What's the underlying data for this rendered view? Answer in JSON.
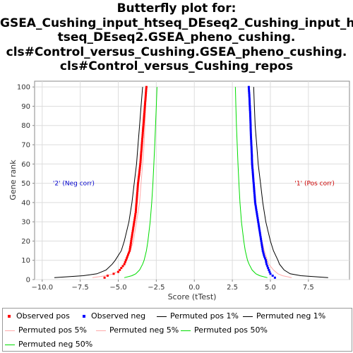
{
  "title_lines": [
    "Butterfly plot for:",
    "GSEA_Cushing_input_htseq_DEseq2_Cushing_input_h",
    "tseq_DEseq2.GSEA_pheno_cushing.",
    "cls#Control_versus_Cushing.GSEA_pheno_cushing.",
    "cls#Control_versus_Cushing_repos"
  ],
  "chart_data": {
    "type": "scatter",
    "xlabel": "Score (tTest)",
    "ylabel": "Gene rank",
    "xlim": [
      -10.5,
      10.2
    ],
    "ylim": [
      0,
      103
    ],
    "xticks": [
      -10.0,
      -7.5,
      -5.0,
      -2.5,
      0.0,
      2.5,
      5.0,
      7.5
    ],
    "xtick_labels": [
      "−10.0",
      "−7.5",
      "−5.0",
      "−2.5",
      "0.0",
      "2.5",
      "5.0",
      "7.5"
    ],
    "yticks": [
      0,
      10,
      20,
      30,
      40,
      50,
      60,
      70,
      80,
      90,
      100
    ],
    "grid": true,
    "legend_position": "bottom",
    "annotations": [
      {
        "text": "'2' (Neg corr)",
        "x": -9.3,
        "y": 50,
        "color": "#0000cc"
      },
      {
        "text": "'1' (Pos corr)",
        "x": 6.6,
        "y": 50,
        "color": "#cc0000"
      }
    ],
    "series": [
      {
        "name": "Observed pos",
        "style": "points",
        "color": "#ff0000",
        "rank": [
          1,
          2,
          3,
          4,
          5,
          6,
          7,
          8,
          10,
          12,
          15,
          20,
          25,
          30,
          35,
          40,
          45,
          50,
          55,
          60,
          65,
          70,
          75,
          80,
          85,
          90,
          95,
          100
        ],
        "score": [
          -5.9,
          -5.7,
          -5.3,
          -5.0,
          -4.9,
          -4.8,
          -4.7,
          -4.6,
          -4.5,
          -4.4,
          -4.25,
          -4.15,
          -4.05,
          -3.95,
          -3.85,
          -3.8,
          -3.75,
          -3.7,
          -3.62,
          -3.55,
          -3.5,
          -3.45,
          -3.4,
          -3.35,
          -3.3,
          -3.25,
          -3.2,
          -3.15
        ]
      },
      {
        "name": "Observed neg",
        "style": "points",
        "color": "#0000ff",
        "rank": [
          1,
          2,
          3,
          4,
          5,
          6,
          7,
          8,
          10,
          12,
          15,
          20,
          25,
          30,
          35,
          40,
          45,
          50,
          55,
          60,
          65,
          70,
          75,
          80,
          85,
          90,
          95,
          100
        ],
        "score": [
          5.3,
          5.15,
          5.0,
          4.95,
          4.9,
          4.85,
          4.8,
          4.75,
          4.7,
          4.6,
          4.5,
          4.4,
          4.3,
          4.2,
          4.1,
          4.0,
          3.95,
          3.9,
          3.85,
          3.8,
          3.78,
          3.75,
          3.72,
          3.7,
          3.68,
          3.65,
          3.62,
          3.58
        ]
      },
      {
        "name": "Permuted pos 1%",
        "style": "line",
        "color": "#000000",
        "rank": [
          1,
          2,
          3,
          5,
          8,
          10,
          15,
          20,
          30,
          40,
          50,
          60,
          70,
          80,
          90,
          100
        ],
        "score": [
          -9.2,
          -7.3,
          -6.4,
          -5.8,
          -5.4,
          -5.2,
          -4.8,
          -4.6,
          -4.3,
          -4.1,
          -3.95,
          -3.8,
          -3.7,
          -3.6,
          -3.5,
          -3.4
        ]
      },
      {
        "name": "Permuted neg 1%",
        "style": "line",
        "color": "#000000",
        "rank": [
          1,
          2,
          3,
          5,
          8,
          10,
          15,
          20,
          30,
          40,
          50,
          60,
          70,
          80,
          90,
          100
        ],
        "score": [
          8.8,
          7.0,
          6.3,
          5.9,
          5.6,
          5.5,
          5.2,
          5.0,
          4.7,
          4.5,
          4.35,
          4.2,
          4.1,
          4.0,
          3.95,
          3.9
        ]
      },
      {
        "name": "Permuted pos 5%",
        "style": "line",
        "color": "#ffaaaa",
        "rank": [
          1,
          2,
          3,
          5,
          8,
          10,
          15,
          20,
          30,
          40,
          50,
          60,
          70,
          80,
          90,
          100
        ],
        "score": [
          -6.7,
          -5.8,
          -5.3,
          -4.9,
          -4.6,
          -4.45,
          -4.2,
          -4.0,
          -3.8,
          -3.6,
          -3.5,
          -3.4,
          -3.3,
          -3.25,
          -3.2,
          -3.15
        ]
      },
      {
        "name": "Permuted neg 5%",
        "style": "line",
        "color": "#ffaaaa",
        "rank": [
          1,
          2,
          3,
          5,
          8,
          10,
          15,
          20,
          30,
          40,
          50,
          60,
          70,
          80,
          90,
          100
        ],
        "score": [
          6.4,
          5.8,
          5.5,
          5.2,
          4.9,
          4.8,
          4.6,
          4.45,
          4.2,
          4.05,
          3.95,
          3.85,
          3.75,
          3.7,
          3.65,
          3.6
        ]
      },
      {
        "name": "Permuted pos 50%",
        "style": "line",
        "color": "#00dd00",
        "rank": [
          1,
          2,
          3,
          5,
          8,
          10,
          15,
          20,
          30,
          40,
          50,
          60,
          70,
          80,
          90,
          100
        ],
        "score": [
          -4.6,
          -4.1,
          -3.85,
          -3.6,
          -3.4,
          -3.3,
          -3.15,
          -3.05,
          -2.9,
          -2.8,
          -2.72,
          -2.66,
          -2.6,
          -2.55,
          -2.5,
          -2.45
        ]
      },
      {
        "name": "Permuted neg 50%",
        "style": "line",
        "color": "#00dd00",
        "rank": [
          1,
          2,
          3,
          5,
          8,
          10,
          15,
          20,
          30,
          40,
          50,
          60,
          70,
          80,
          90,
          100
        ],
        "score": [
          4.8,
          4.3,
          4.05,
          3.8,
          3.6,
          3.5,
          3.35,
          3.25,
          3.1,
          3.0,
          2.93,
          2.87,
          2.82,
          2.77,
          2.73,
          2.7
        ]
      }
    ]
  },
  "legend": [
    {
      "label": "Observed pos",
      "kind": "dot",
      "color": "#ff0000"
    },
    {
      "label": "Observed neg",
      "kind": "dot",
      "color": "#0000ff"
    },
    {
      "label": "Permuted pos 1%",
      "kind": "line",
      "color": "#000000"
    },
    {
      "label": "Permuted neg 1%",
      "kind": "line",
      "color": "#000000"
    },
    {
      "label": "Permuted pos 5%",
      "kind": "line",
      "color": "#ffaaaa"
    },
    {
      "label": "Permuted neg 5%",
      "kind": "line",
      "color": "#ffaaaa"
    },
    {
      "label": "Permuted pos 50%",
      "kind": "line",
      "color": "#00dd00"
    },
    {
      "label": "Permuted neg 50%",
      "kind": "line",
      "color": "#00dd00"
    }
  ]
}
